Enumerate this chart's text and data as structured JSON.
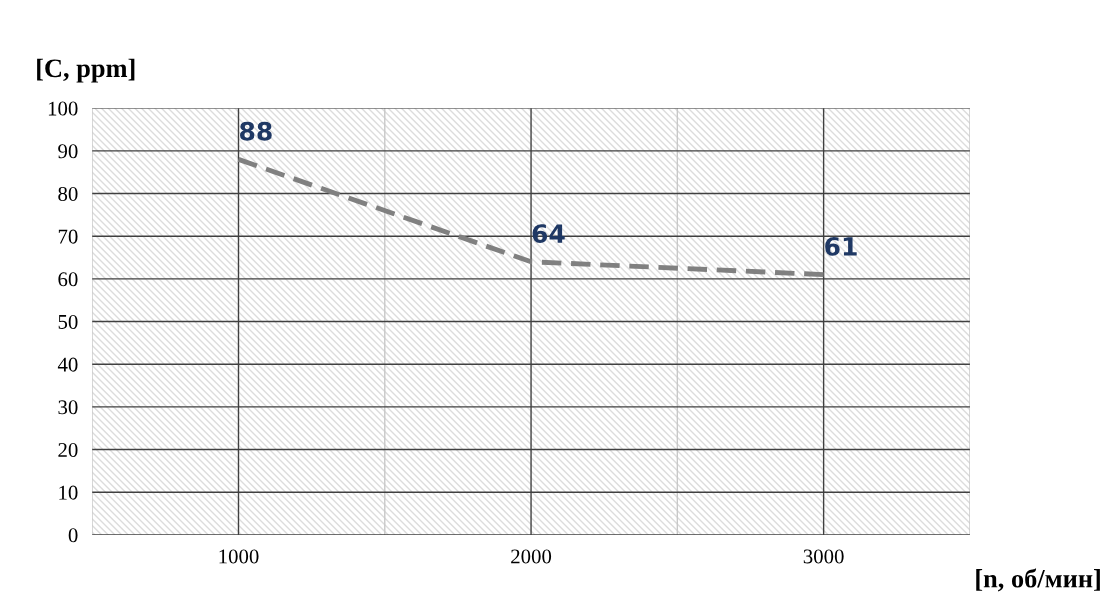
{
  "chart_data": {
    "type": "line",
    "xlabel": "[n, об/мин]",
    "ylabel": "[C, ppm]",
    "x": [
      1000,
      2000,
      3000
    ],
    "series": [
      {
        "color": "#808080",
        "values": [
          88,
          64,
          61
        ]
      }
    ],
    "line_style": "dashed",
    "marker": "none",
    "data_labels": true,
    "grid": true,
    "legend": false,
    "xlim": [
      500,
      3500
    ],
    "xticks": [
      {
        "value": 500,
        "label": null
      },
      {
        "value": 1000,
        "label": "1000"
      },
      {
        "value": 1500,
        "label": null
      },
      {
        "value": 2000,
        "label": "2000"
      },
      {
        "value": 2500,
        "label": null
      },
      {
        "value": 3000,
        "label": "3000"
      },
      {
        "value": 3500,
        "label": null
      }
    ],
    "ylim": [
      0,
      100
    ],
    "yticks": [
      0,
      10,
      20,
      30,
      40,
      50,
      60,
      70,
      80,
      90,
      100
    ]
  }
}
